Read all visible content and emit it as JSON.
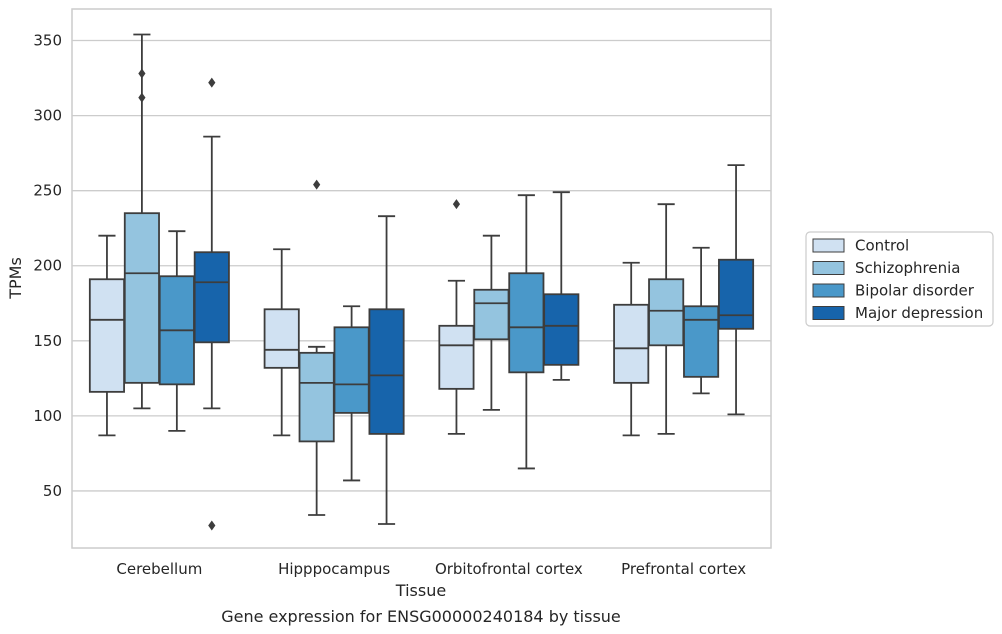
{
  "chart_data": {
    "type": "boxplot",
    "caption": "Gene expression for ENSG00000240184 by tissue",
    "xlabel": "Tissue",
    "ylabel": "TPMs",
    "ylim": [
      12,
      371
    ],
    "yticks": [
      50,
      100,
      150,
      200,
      250,
      300,
      350
    ],
    "grid": "horizontal",
    "legend_position": "right",
    "categories": [
      "Cerebellum",
      "Hipppocampus",
      "Orbitofrontal cortex",
      "Prefrontal cortex"
    ],
    "series": [
      {
        "name": "Control",
        "color": "#d0e1f2",
        "boxes": [
          {
            "whisker_low": 87,
            "q1": 116,
            "median": 164,
            "q3": 191,
            "whisker_high": 220,
            "outliers": []
          },
          {
            "whisker_low": 87,
            "q1": 132,
            "median": 144,
            "q3": 171,
            "whisker_high": 211,
            "outliers": []
          },
          {
            "whisker_low": 88,
            "q1": 118,
            "median": 147,
            "q3": 160,
            "whisker_high": 190,
            "outliers": [
              241
            ]
          },
          {
            "whisker_low": 87,
            "q1": 122,
            "median": 145,
            "q3": 174,
            "whisker_high": 202,
            "outliers": []
          }
        ]
      },
      {
        "name": "Schizophrenia",
        "color": "#94c4df",
        "boxes": [
          {
            "whisker_low": 105,
            "q1": 122,
            "median": 195,
            "q3": 235,
            "whisker_high": 354,
            "outliers": [
              328,
              312
            ]
          },
          {
            "whisker_low": 34,
            "q1": 83,
            "median": 122,
            "q3": 142,
            "whisker_high": 146,
            "outliers": [
              254
            ]
          },
          {
            "whisker_low": 104,
            "q1": 151,
            "median": 175,
            "q3": 184,
            "whisker_high": 220,
            "outliers": []
          },
          {
            "whisker_low": 88,
            "q1": 147,
            "median": 170,
            "q3": 191,
            "whisker_high": 241,
            "outliers": []
          }
        ]
      },
      {
        "name": "Bipolar disorder",
        "color": "#4a98c9",
        "boxes": [
          {
            "whisker_low": 90,
            "q1": 121,
            "median": 157,
            "q3": 193,
            "whisker_high": 223,
            "outliers": []
          },
          {
            "whisker_low": 57,
            "q1": 102,
            "median": 121,
            "q3": 159,
            "whisker_high": 173,
            "outliers": []
          },
          {
            "whisker_low": 65,
            "q1": 129,
            "median": 159,
            "q3": 195,
            "whisker_high": 247,
            "outliers": []
          },
          {
            "whisker_low": 115,
            "q1": 126,
            "median": 164,
            "q3": 173,
            "whisker_high": 212,
            "outliers": []
          }
        ]
      },
      {
        "name": "Major depression",
        "color": "#1764ab",
        "boxes": [
          {
            "whisker_low": 105,
            "q1": 149,
            "median": 189,
            "q3": 209,
            "whisker_high": 286,
            "outliers": [
              322,
              27
            ]
          },
          {
            "whisker_low": 28,
            "q1": 88,
            "median": 127,
            "q3": 171,
            "whisker_high": 233,
            "outliers": []
          },
          {
            "whisker_low": 124,
            "q1": 134,
            "median": 160,
            "q3": 181,
            "whisker_high": 249,
            "outliers": []
          },
          {
            "whisker_low": 101,
            "q1": 158,
            "median": 167,
            "q3": 204,
            "whisker_high": 267,
            "outliers": []
          }
        ]
      }
    ]
  }
}
